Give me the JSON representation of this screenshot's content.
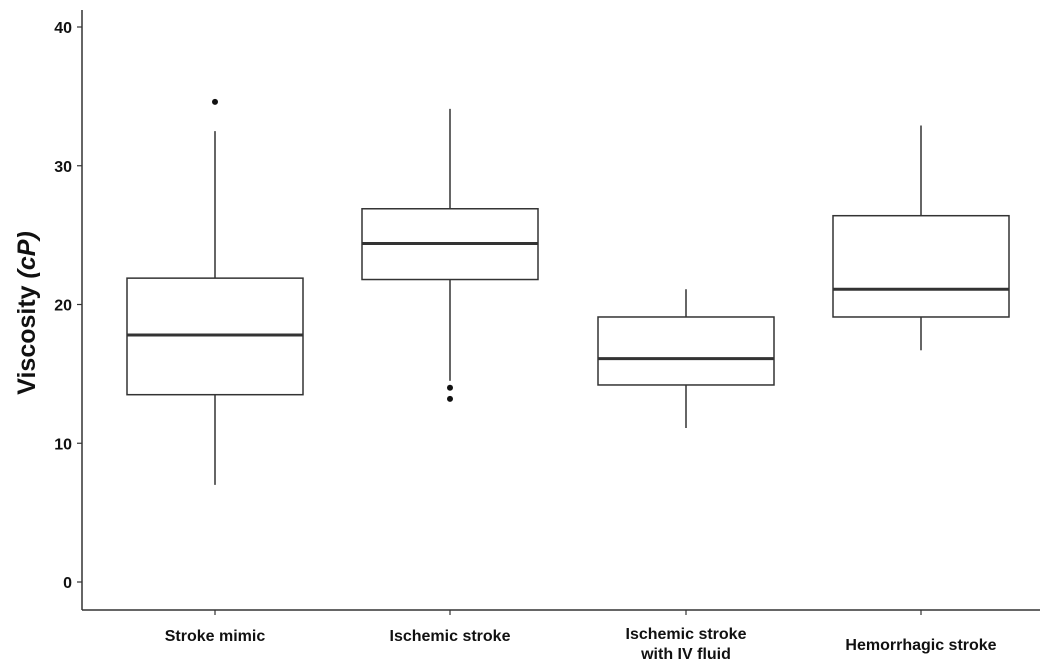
{
  "chart_data": {
    "type": "boxplot",
    "ylabel": "Viscosity",
    "ylabel_unit": "(cP)",
    "ylim": [
      0,
      40
    ],
    "yticks": [
      0,
      10,
      20,
      30,
      40
    ],
    "grid": false,
    "categories": [
      [
        "Stroke mimic"
      ],
      [
        "Ischemic stroke"
      ],
      [
        "Ischemic stroke",
        "with IV fluid"
      ],
      [
        "Hemorrhagic stroke"
      ]
    ],
    "boxes": [
      {
        "whisker_low": 7.0,
        "q1": 13.5,
        "median": 17.8,
        "q3": 21.9,
        "whisker_high": 32.5,
        "outliers": [
          34.6
        ]
      },
      {
        "whisker_low": 14.5,
        "q1": 21.8,
        "median": 24.4,
        "q3": 26.9,
        "whisker_high": 34.1,
        "outliers": [
          14.0,
          13.2
        ]
      },
      {
        "whisker_low": 11.1,
        "q1": 14.2,
        "median": 16.1,
        "q3": 19.1,
        "whisker_high": 21.1,
        "outliers": []
      },
      {
        "whisker_low": 16.7,
        "q1": 19.1,
        "median": 21.1,
        "q3": 26.4,
        "whisker_high": 32.9,
        "outliers": []
      }
    ]
  }
}
